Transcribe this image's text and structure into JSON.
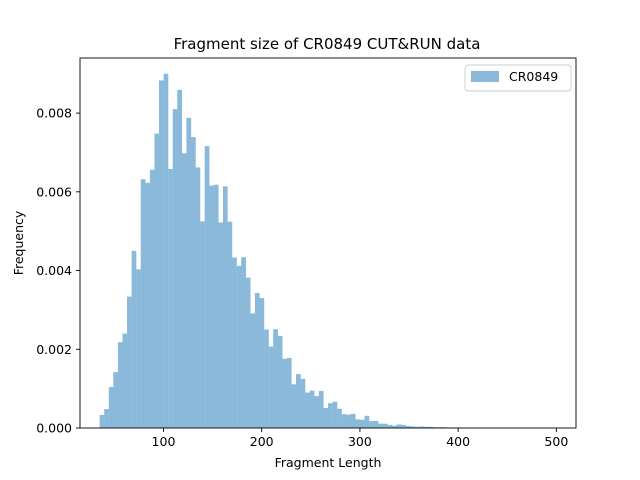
{
  "chart_data": {
    "type": "bar",
    "title": "Fragment size of CR0849 CUT&RUN data",
    "xlabel": "Fragment Length",
    "ylabel": "Frequency",
    "xlim": [
      15,
      520
    ],
    "ylim": [
      0,
      0.0094
    ],
    "xticks": [
      100,
      200,
      300,
      400,
      500
    ],
    "yticks": [
      0.0,
      0.002,
      0.004,
      0.006,
      0.008
    ],
    "xtick_labels": [
      "100",
      "200",
      "300",
      "400",
      "500"
    ],
    "ytick_labels": [
      "0.000",
      "0.002",
      "0.004",
      "0.006",
      "0.008"
    ],
    "legend": {
      "position": "top-right",
      "entries": [
        "CR0849"
      ]
    },
    "grid": false,
    "colors": {
      "bars": "#8ab9da",
      "axes": "#000000"
    },
    "bin_start": 35,
    "bin_width": 4.65,
    "series": [
      {
        "name": "CR0849",
        "values": [
          0.00033,
          0.00048,
          0.00104,
          0.00142,
          0.00218,
          0.0024,
          0.00334,
          0.0045,
          0.00403,
          0.00632,
          0.00623,
          0.00656,
          0.00748,
          0.00883,
          0.009,
          0.00658,
          0.0081,
          0.00859,
          0.00698,
          0.00788,
          0.00739,
          0.00662,
          0.00525,
          0.00716,
          0.00616,
          0.00618,
          0.00522,
          0.00614,
          0.00524,
          0.00433,
          0.00412,
          0.00434,
          0.00382,
          0.00291,
          0.00343,
          0.0033,
          0.0025,
          0.00207,
          0.00251,
          0.00234,
          0.00176,
          0.00178,
          0.00111,
          0.00137,
          0.00125,
          0.0009,
          0.00095,
          0.00081,
          0.00094,
          0.00051,
          0.00063,
          0.00067,
          0.00049,
          0.00035,
          0.00034,
          0.00036,
          0.00022,
          0.00021,
          0.00031,
          0.00018,
          0.00018,
          0.00011,
          0.00011,
          8e-05,
          6e-05,
          9e-05,
          8e-05,
          5e-05,
          4e-05,
          3e-05,
          4e-05,
          3e-05,
          3e-05,
          2e-05,
          2e-05,
          2e-05,
          1e-05,
          1e-05,
          1e-05,
          1e-05
        ]
      }
    ]
  }
}
